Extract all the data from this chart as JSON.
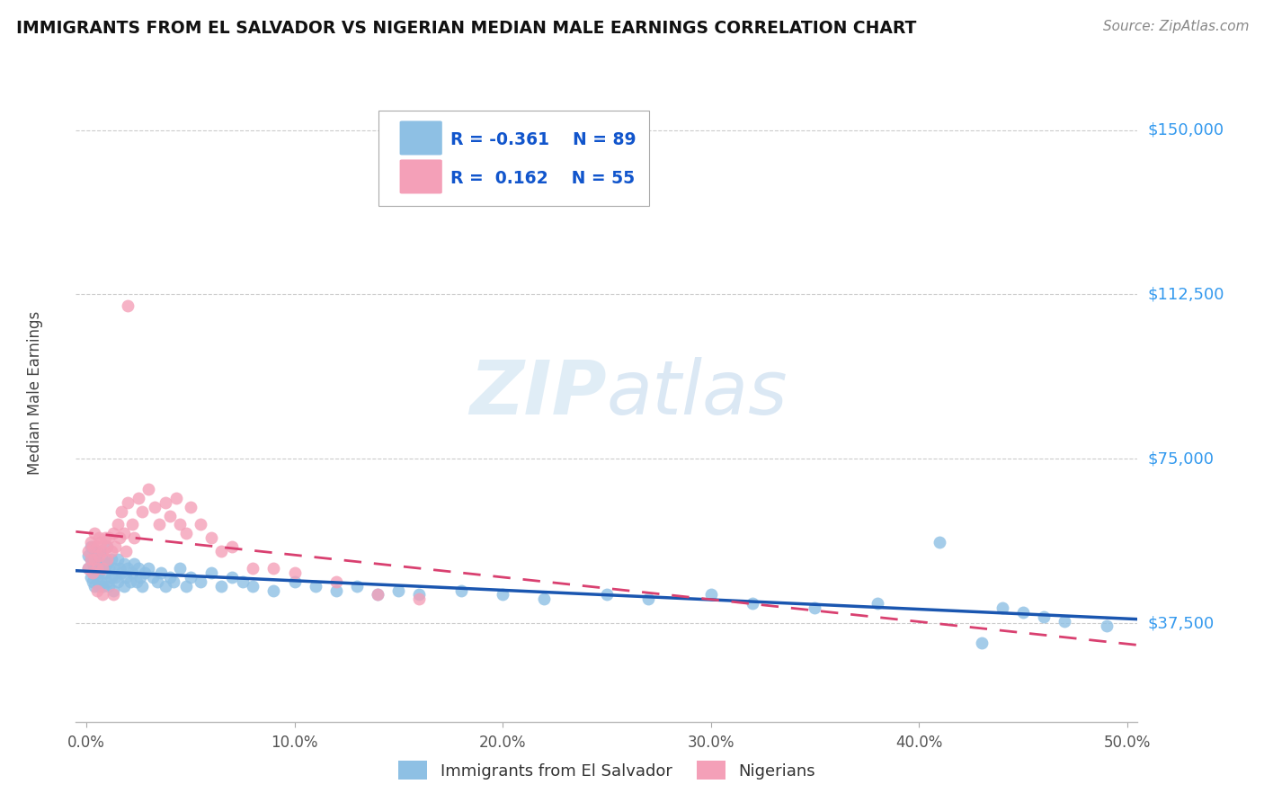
{
  "title": "IMMIGRANTS FROM EL SALVADOR VS NIGERIAN MEDIAN MALE EARNINGS CORRELATION CHART",
  "source": "Source: ZipAtlas.com",
  "ylabel": "Median Male Earnings",
  "xlabel_ticks": [
    "0.0%",
    "10.0%",
    "20.0%",
    "30.0%",
    "40.0%",
    "50.0%"
  ],
  "xlabel_vals": [
    0.0,
    0.1,
    0.2,
    0.3,
    0.4,
    0.5
  ],
  "ytick_labels": [
    "$37,500",
    "$75,000",
    "$112,500",
    "$150,000"
  ],
  "ytick_vals": [
    37500,
    75000,
    112500,
    150000
  ],
  "ylim": [
    15000,
    165000
  ],
  "xlim": [
    -0.005,
    0.505
  ],
  "legend_blue_label": "Immigrants from El Salvador",
  "legend_pink_label": "Nigerians",
  "R_blue": -0.361,
  "N_blue": 89,
  "R_pink": 0.162,
  "N_pink": 55,
  "blue_color": "#8ec0e4",
  "pink_color": "#f4a0b8",
  "blue_line_color": "#1a56b0",
  "pink_line_color": "#d94070",
  "grid_color": "#cccccc",
  "background_color": "#ffffff",
  "blue_scatter_x": [
    0.001,
    0.001,
    0.002,
    0.002,
    0.002,
    0.003,
    0.003,
    0.003,
    0.004,
    0.004,
    0.004,
    0.005,
    0.005,
    0.005,
    0.006,
    0.006,
    0.007,
    0.007,
    0.007,
    0.008,
    0.008,
    0.009,
    0.009,
    0.01,
    0.01,
    0.01,
    0.011,
    0.011,
    0.012,
    0.012,
    0.013,
    0.013,
    0.014,
    0.015,
    0.015,
    0.016,
    0.017,
    0.018,
    0.018,
    0.019,
    0.02,
    0.021,
    0.022,
    0.023,
    0.024,
    0.025,
    0.026,
    0.027,
    0.028,
    0.03,
    0.032,
    0.034,
    0.036,
    0.038,
    0.04,
    0.042,
    0.045,
    0.048,
    0.05,
    0.055,
    0.06,
    0.065,
    0.07,
    0.075,
    0.08,
    0.09,
    0.1,
    0.11,
    0.12,
    0.13,
    0.14,
    0.15,
    0.16,
    0.18,
    0.2,
    0.22,
    0.25,
    0.27,
    0.3,
    0.32,
    0.35,
    0.38,
    0.41,
    0.43,
    0.44,
    0.45,
    0.46,
    0.47,
    0.49
  ],
  "blue_scatter_y": [
    53000,
    50000,
    52000,
    48000,
    55000,
    49000,
    51000,
    47000,
    53000,
    50000,
    46000,
    54000,
    48000,
    52000,
    49000,
    46000,
    51000,
    47000,
    54000,
    50000,
    46000,
    52000,
    49000,
    51000,
    47000,
    55000,
    50000,
    46000,
    52000,
    48000,
    50000,
    45000,
    48000,
    52000,
    47000,
    50000,
    49000,
    51000,
    46000,
    48000,
    50000,
    47000,
    49000,
    51000,
    47000,
    50000,
    48000,
    46000,
    49000,
    50000,
    48000,
    47000,
    49000,
    46000,
    48000,
    47000,
    50000,
    46000,
    48000,
    47000,
    49000,
    46000,
    48000,
    47000,
    46000,
    45000,
    47000,
    46000,
    45000,
    46000,
    44000,
    45000,
    44000,
    45000,
    44000,
    43000,
    44000,
    43000,
    44000,
    42000,
    41000,
    42000,
    56000,
    33000,
    41000,
    40000,
    39000,
    38000,
    37000
  ],
  "pink_scatter_x": [
    0.001,
    0.001,
    0.002,
    0.002,
    0.003,
    0.003,
    0.004,
    0.004,
    0.005,
    0.005,
    0.006,
    0.006,
    0.007,
    0.008,
    0.008,
    0.009,
    0.01,
    0.01,
    0.011,
    0.012,
    0.013,
    0.014,
    0.015,
    0.016,
    0.017,
    0.018,
    0.019,
    0.02,
    0.022,
    0.023,
    0.025,
    0.027,
    0.03,
    0.033,
    0.035,
    0.038,
    0.04,
    0.043,
    0.045,
    0.048,
    0.05,
    0.055,
    0.06,
    0.065,
    0.07,
    0.08,
    0.09,
    0.1,
    0.12,
    0.14,
    0.16,
    0.013,
    0.008,
    0.005,
    0.02
  ],
  "pink_scatter_y": [
    54000,
    50000,
    56000,
    52000,
    55000,
    49000,
    58000,
    52000,
    55000,
    50000,
    57000,
    53000,
    56000,
    54000,
    50000,
    57000,
    55000,
    52000,
    57000,
    54000,
    58000,
    55000,
    60000,
    57000,
    63000,
    58000,
    54000,
    65000,
    60000,
    57000,
    66000,
    63000,
    68000,
    64000,
    60000,
    65000,
    62000,
    66000,
    60000,
    58000,
    64000,
    60000,
    57000,
    54000,
    55000,
    50000,
    50000,
    49000,
    47000,
    44000,
    43000,
    44000,
    44000,
    45000,
    110000
  ]
}
